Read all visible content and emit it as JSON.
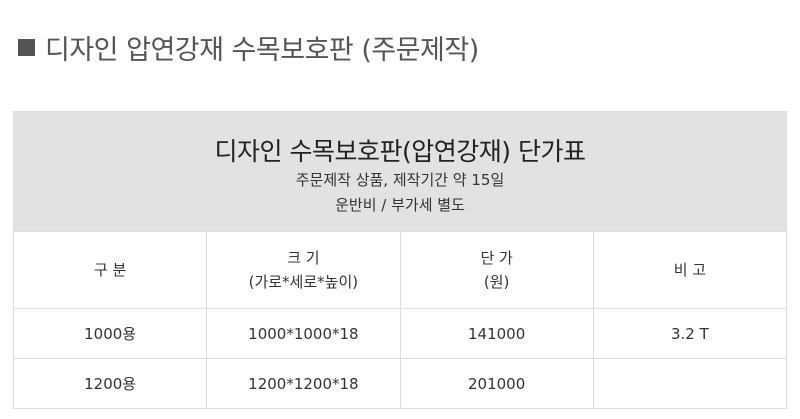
{
  "heading": {
    "icon": "square-bullet-icon",
    "text": "디자인 압연강재 수목보호판 (주문제작)"
  },
  "table": {
    "title": "디자인 수목보호판(압연강재) 단가표",
    "notes": [
      "주문제작 상품, 제작기간 약 15일",
      "운반비 / 부가세 별도"
    ],
    "columns": [
      {
        "line1": "구 분",
        "line2": ""
      },
      {
        "line1": "크 기",
        "line2": "(가로*세로*높이)"
      },
      {
        "line1": "단 가",
        "line2": "(원)"
      },
      {
        "line1": "비 고",
        "line2": ""
      }
    ],
    "rows": [
      [
        "1000용",
        "1000*1000*18",
        "141000",
        "3.2 T"
      ],
      [
        "1200용",
        "1200*1200*18",
        "201000",
        ""
      ]
    ]
  }
}
